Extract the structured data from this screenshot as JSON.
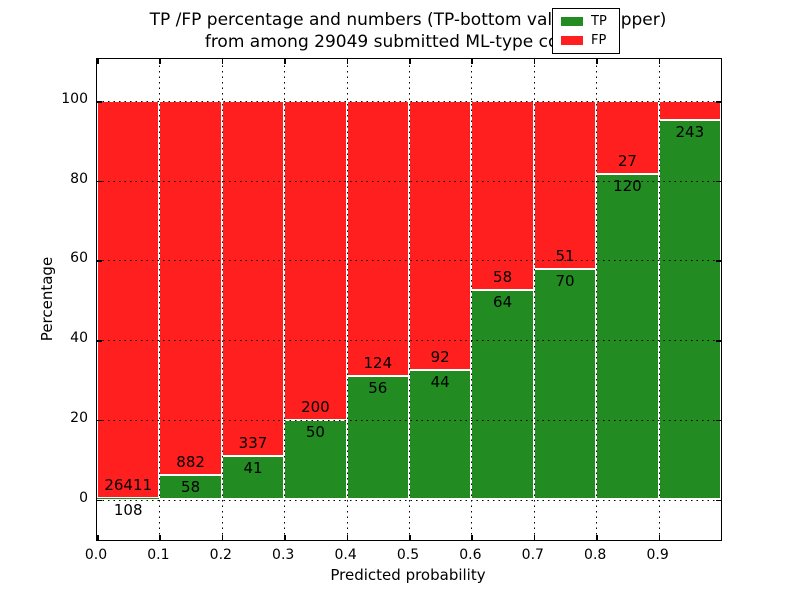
{
  "title": {
    "line1": "TP /FP percentage and numbers (TP-bottom value, FP-upper)",
    "line2": "from among 29049 submitted ML-type contacts"
  },
  "x_axis": {
    "label": "Predicted probability",
    "ticks": [
      "0.0",
      "0.1",
      "0.2",
      "0.3",
      "0.4",
      "0.5",
      "0.6",
      "0.7",
      "0.8",
      "0.9"
    ]
  },
  "y_axis": {
    "label": "Percentage",
    "ticks": [
      "0",
      "20",
      "40",
      "60",
      "80",
      "100"
    ],
    "tick_values": [
      0,
      20,
      40,
      60,
      80,
      100
    ]
  },
  "legend": {
    "items": [
      {
        "label": "TP",
        "color": "#228b22"
      },
      {
        "label": "FP",
        "color": "#ff1f1f"
      }
    ]
  },
  "colors": {
    "tp": "#228b22",
    "fp": "#ff1f1f",
    "bar_edge": "#ffffff",
    "grid": "#000000",
    "text": "#000000"
  },
  "chart_data": {
    "type": "bar",
    "stacked": true,
    "normalized": "each bin scaled to 100%",
    "title": "TP /FP percentage and numbers (TP-bottom value, FP-upper) from among 29049 submitted ML-type contacts",
    "total_submitted_contacts": 29049,
    "xlabel": "Predicted probability",
    "ylabel": "Percentage",
    "xlim": [
      0.0,
      1.0
    ],
    "ylim": [
      -10,
      110.5
    ],
    "grid": "dotted, drawn over bars",
    "legend_position": "upper right",
    "x_bins": [
      "0.0-0.1",
      "0.1-0.2",
      "0.2-0.3",
      "0.3-0.4",
      "0.4-0.5",
      "0.5-0.6",
      "0.6-0.7",
      "0.7-0.8",
      "0.8-0.9",
      "0.9-1.0"
    ],
    "series": [
      {
        "name": "TP",
        "color": "#228b22",
        "counts": [
          108,
          58,
          41,
          50,
          56,
          44,
          64,
          70,
          120,
          243
        ],
        "percent": [
          0.4,
          6.2,
          10.8,
          20.0,
          31.1,
          32.4,
          52.5,
          57.9,
          81.6,
          95.2
        ]
      },
      {
        "name": "FP",
        "color": "#ff1f1f",
        "counts": [
          26411,
          882,
          337,
          200,
          124,
          92,
          58,
          51,
          27,
          null
        ],
        "percent": [
          99.6,
          93.8,
          89.2,
          80.0,
          68.9,
          67.6,
          47.5,
          42.1,
          18.4,
          4.8
        ],
        "note": "FP count label for 0.9-1.0 bin is hidden behind the legend"
      }
    ]
  }
}
